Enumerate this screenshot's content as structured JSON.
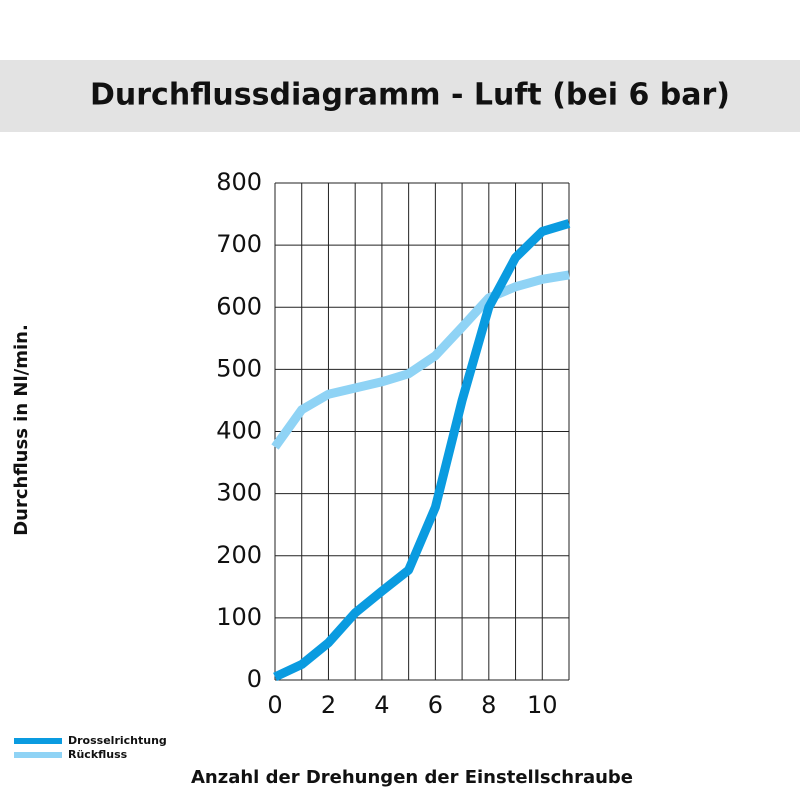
{
  "chart_data": {
    "type": "line",
    "title": "Durchflussdiagramm - Luft (bei 6 bar)",
    "x_label": "Anzahl der Drehungen der Einstellschraube",
    "y_label": "Durchfluss in Nl/min.",
    "x": [
      0,
      1,
      2,
      3,
      4,
      5,
      6,
      7,
      8,
      9,
      10,
      11
    ],
    "series": [
      {
        "name": "Drosselrichtung",
        "color": "#0a9be0",
        "values": [
          5,
          25,
          60,
          108,
          143,
          177,
          278,
          450,
          600,
          680,
          722,
          735
        ]
      },
      {
        "name": "Rückfluss",
        "color": "#8fd3f5",
        "values": [
          375,
          435,
          460,
          470,
          480,
          493,
          522,
          568,
          615,
          633,
          645,
          652
        ]
      }
    ],
    "xlim": [
      0,
      11
    ],
    "ylim": [
      0,
      800
    ],
    "xticks": [
      0,
      2,
      4,
      6,
      8,
      10
    ],
    "xgrid": [
      0,
      1,
      2,
      3,
      4,
      5,
      6,
      7,
      8,
      9,
      10,
      11
    ],
    "yticks": [
      0,
      100,
      200,
      300,
      400,
      500,
      600,
      700,
      800
    ],
    "grid": true,
    "legend": "bottom-left"
  }
}
